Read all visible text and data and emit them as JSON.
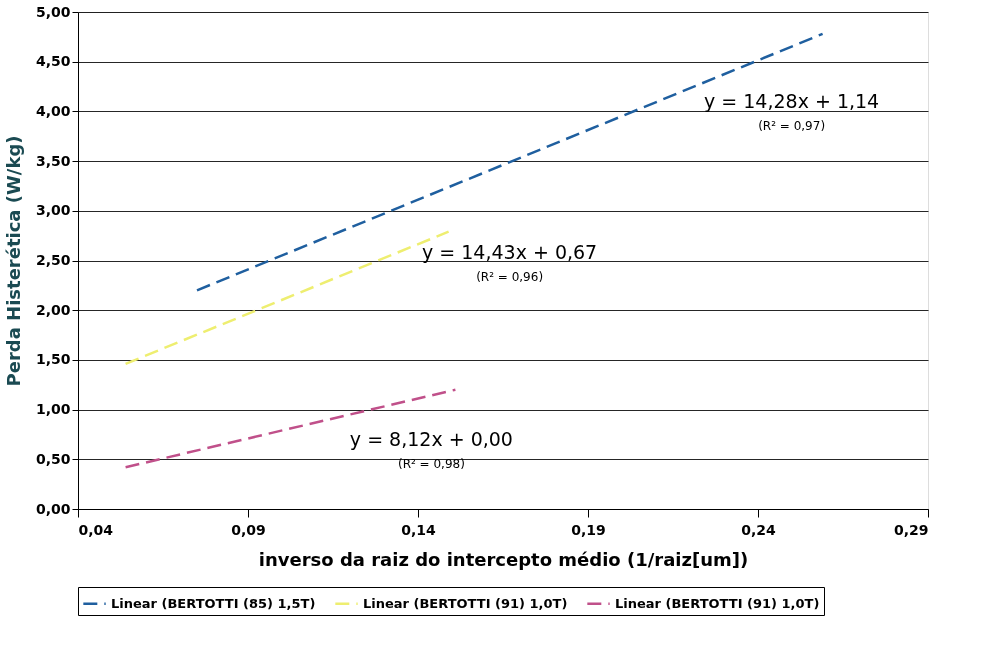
{
  "chart_data": {
    "type": "line",
    "xlabel": "inverso da raiz do intercepto médio (1/raiz[um])",
    "ylabel": "Perda Histerética (W/kg)",
    "xlim": [
      0.04,
      0.29
    ],
    "xticks": [
      {
        "value": 0.04,
        "label": "0,04"
      },
      {
        "value": 0.09,
        "label": "0,09"
      },
      {
        "value": 0.14,
        "label": "0,14"
      },
      {
        "value": 0.19,
        "label": "0,19"
      },
      {
        "value": 0.24,
        "label": "0,24"
      },
      {
        "value": 0.29,
        "label": "0,29"
      }
    ],
    "ylim": [
      0,
      5
    ],
    "yticks": [
      {
        "value": 0,
        "label": "0,00"
      },
      {
        "value": 0.5,
        "label": "0,50"
      },
      {
        "value": 1,
        "label": "1,00"
      },
      {
        "value": 1.5,
        "label": "1,50"
      },
      {
        "value": 2,
        "label": "2,00"
      },
      {
        "value": 2.5,
        "label": "2,50"
      },
      {
        "value": 3,
        "label": "3,00"
      },
      {
        "value": 3.5,
        "label": "3,50"
      },
      {
        "value": 4,
        "label": "4,00"
      },
      {
        "value": 4.5,
        "label": "4,50"
      },
      {
        "value": 5,
        "label": "5,00"
      }
    ],
    "grid": "y",
    "legend": "bottom",
    "line_style": "dashed",
    "marker": "none",
    "series": [
      {
        "name": "Linear (BERTOTTI (85) 1,5T)",
        "color": "#1f5f9f",
        "x": [
          0.075,
          0.259
        ],
        "values": [
          2.2,
          4.78
        ]
      },
      {
        "name": "Linear (BERTOTTI (91) 1,0T)",
        "color": "#eeee70",
        "x": [
          0.054,
          0.149
        ],
        "values": [
          1.46,
          2.79
        ]
      },
      {
        "name": "Linear (BERTOTTI (91) 1,0T)",
        "color": "#c0508a",
        "x": [
          0.054,
          0.151
        ],
        "values": [
          0.42,
          1.2
        ]
      }
    ],
    "annotations": [
      "y = 14,28x + 1,14",
      "(R² = 0,97)",
      "y = 14,43x + 0,67",
      "(R² = 0,96)",
      "y = 8,12x + 0,00",
      "(R² = 0,98)"
    ]
  }
}
